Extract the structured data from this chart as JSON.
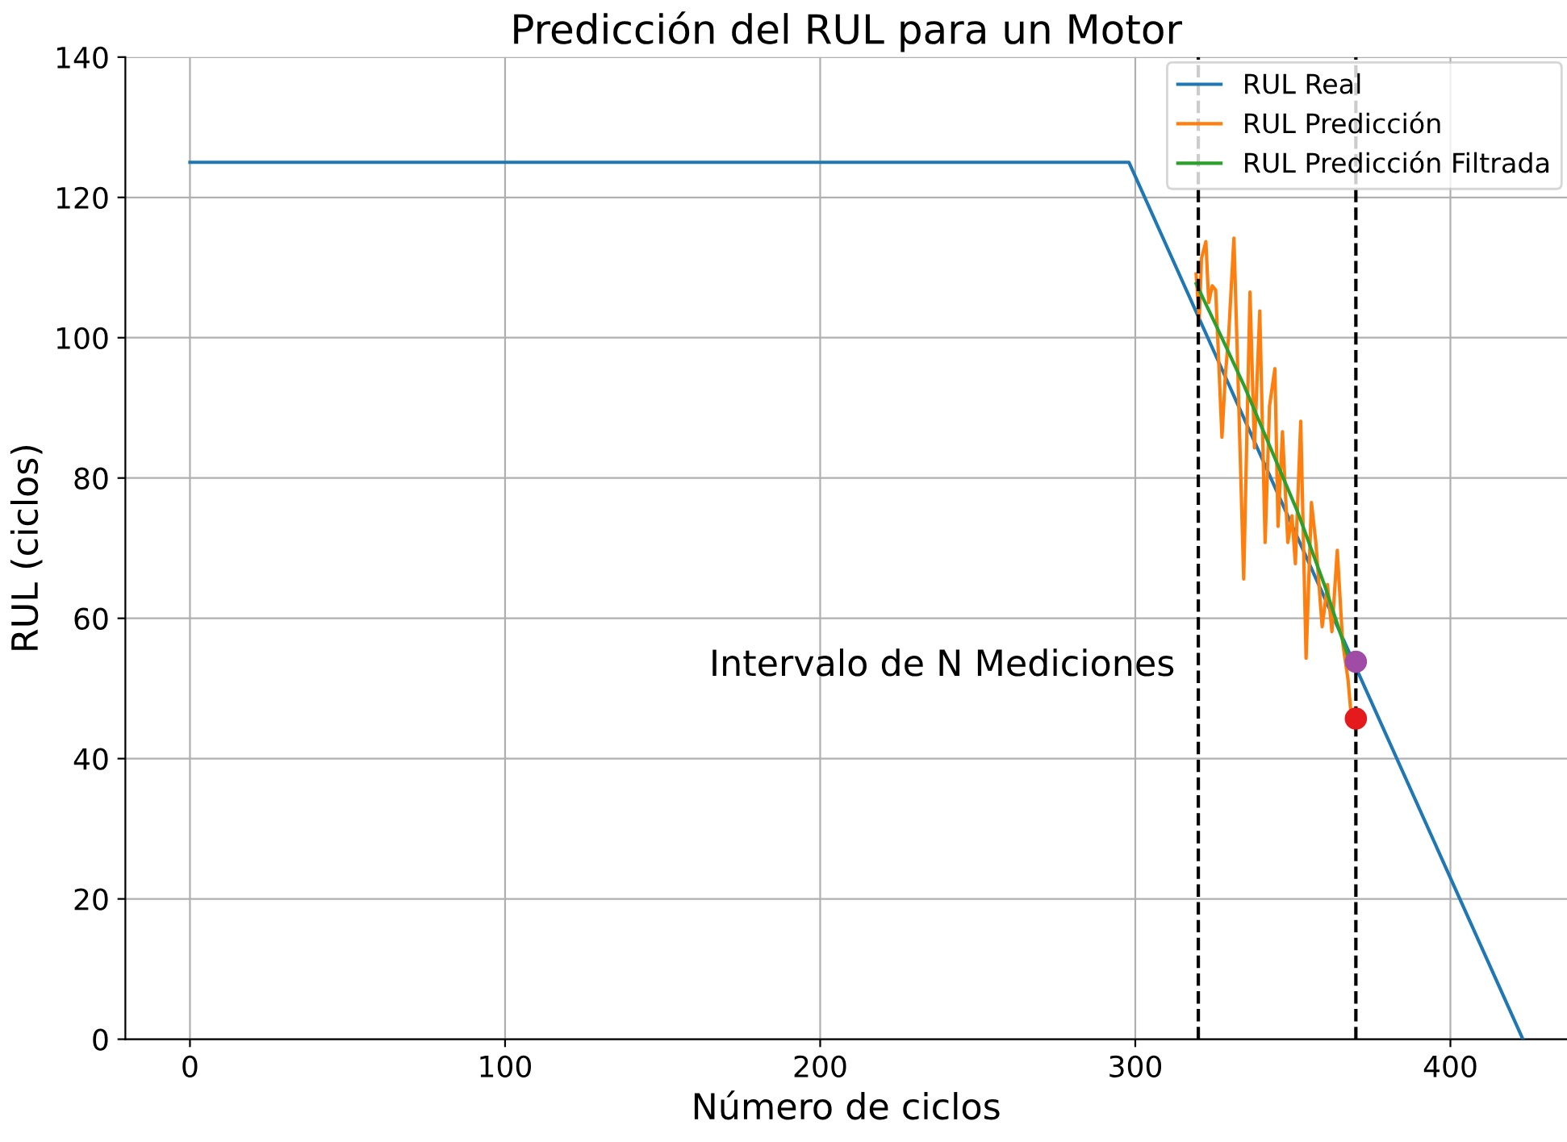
{
  "chart_data": {
    "type": "line",
    "title": "Predicción del RUL para un Motor",
    "xlabel": "Número de ciclos",
    "ylabel": "RUL (ciclos)",
    "series": [
      {
        "name": "RUL Real",
        "color": "#1f77b4",
        "x": [
          0,
          298,
          423
        ],
        "values": [
          125,
          125,
          0
        ]
      },
      {
        "name": "RUL Predicción",
        "color": "#ff7f0e",
        "x": [
          319.3,
          320.3,
          321.0,
          322.4,
          323.3,
          324.4,
          325.5,
          326.5,
          327.5,
          328.6,
          329.6,
          331.3,
          332.7,
          334.4,
          336.4,
          337.8,
          339.5,
          341.2,
          342.6,
          344.3,
          345.3,
          346.7,
          348.4,
          349.7,
          350.8,
          352.5,
          354.2,
          355.9,
          357.3,
          359.3,
          361.0,
          362.4,
          364.1,
          365.8,
          367.5,
          368.6
        ],
        "values": [
          109.1,
          102.7,
          111.3,
          113.7,
          105.0,
          107.4,
          106.8,
          96.3,
          85.8,
          94.8,
          100.1,
          114.2,
          92.6,
          65.6,
          106.5,
          84.3,
          103.8,
          70.8,
          90.3,
          95.6,
          73.1,
          86.6,
          70.8,
          74.6,
          67.8,
          88.1,
          54.3,
          76.5,
          70.8,
          58.8,
          64.8,
          58.1,
          69.7,
          56.6,
          51.3,
          45.7
        ]
      },
      {
        "name": "RUL Predicción Filtrada",
        "color": "#2ca02c",
        "x": [
          319.3,
          325.8,
          334.4,
          342.9,
          351.4,
          360.0,
          367.7,
          370
        ],
        "values": [
          107.7,
          101.6,
          93.3,
          84.3,
          75.3,
          64.8,
          54.3,
          53.8
        ]
      },
      {
        "type": "scatter",
        "color": "#a04ba6",
        "x": [
          370
        ],
        "values": [
          53.8
        ]
      },
      {
        "type": "scatter",
        "color": "#e41a1c",
        "x": [
          370
        ],
        "values": [
          45.7
        ]
      }
    ],
    "ref_lines": [
      {
        "axis": "x",
        "value": 320,
        "color": "#000000",
        "line_style": "dashed"
      },
      {
        "axis": "x",
        "value": 370,
        "color": "#000000",
        "line_style": "dashed"
      }
    ],
    "annotations": [
      "Intervalo de N Mediciones"
    ],
    "xlim": [
      -20.5,
      437
    ],
    "xticks": [
      0,
      100,
      200,
      300,
      400
    ],
    "ylim": [
      0,
      140
    ],
    "yticks": [
      0,
      20,
      40,
      60,
      80,
      100,
      120,
      140
    ],
    "grid": true,
    "legend": "top right"
  }
}
